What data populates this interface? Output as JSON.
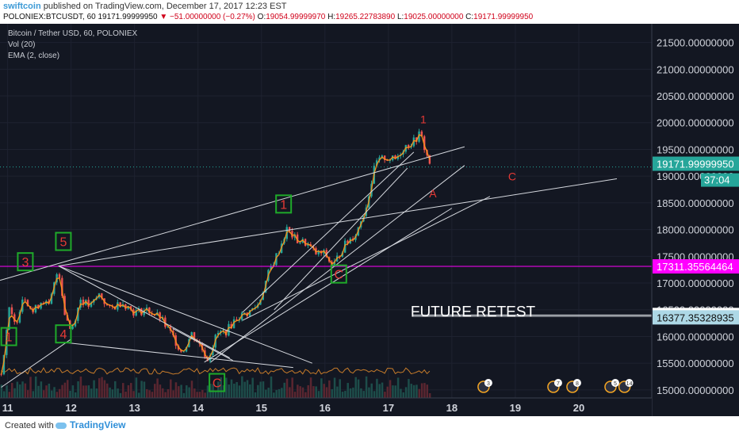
{
  "header": {
    "author": "swiftcoin",
    "published": "published on TradingView.com, December 17, 2017 12:23 EST",
    "symbol": "POLONIEX:BTCUSDT, 60",
    "last": "19171.99999950",
    "change": "▼ −51.00000000 (−0.27%)",
    "ohlc": {
      "o_label": "O:",
      "o": "19054.99999970",
      "h_label": "H:",
      "h": "19265.22783890",
      "l_label": "L:",
      "l": "19025.00000000",
      "c_label": "C:",
      "c": "19171.99999950"
    }
  },
  "legend": {
    "title": "Bitcoin / Tether USD, 60, POLONIEX",
    "vol": "Vol (20)",
    "ema": "EMA (2, close)"
  },
  "footer": {
    "created": "Created with",
    "brand": "TradingView"
  },
  "colors": {
    "background": "#131722",
    "up": "#26a69a",
    "down": "#ef5350",
    "ema": "#f7931a",
    "magenta": "#ff00ff",
    "annotation": "#e53935",
    "box": "#1faa2a"
  },
  "chart_data": {
    "type": "candlestick",
    "title": "Bitcoin / Tether USD, 60, POLONIEX",
    "x_ticks": [
      "11",
      "12",
      "13",
      "14",
      "15",
      "16",
      "17",
      "18",
      "19",
      "20"
    ],
    "y_ticks": [
      "15000.00000000",
      "15500.00000000",
      "16000.00000000",
      "16500.00000000",
      "17000.00000000",
      "17500.00000000",
      "18000.00000000",
      "18500.00000000",
      "19000.00000000",
      "19500.00000000",
      "20000.00000000",
      "20500.00000000",
      "21000.00000000",
      "21500.00000000"
    ],
    "ylim": [
      14850,
      21850
    ],
    "xlim": [
      10.88,
      21.15
    ],
    "price_path": [
      [
        10.9,
        15300
      ],
      [
        11.02,
        16500
      ],
      [
        11.12,
        16200
      ],
      [
        11.25,
        16800
      ],
      [
        11.4,
        16450
      ],
      [
        11.55,
        16700
      ],
      [
        11.65,
        16550
      ],
      [
        11.8,
        17300
      ],
      [
        11.9,
        16450
      ],
      [
        12.0,
        16100
      ],
      [
        12.15,
        16700
      ],
      [
        12.3,
        16550
      ],
      [
        12.45,
        16800
      ],
      [
        12.6,
        16500
      ],
      [
        12.8,
        16650
      ],
      [
        13.0,
        16450
      ],
      [
        13.2,
        16500
      ],
      [
        13.4,
        16350
      ],
      [
        13.6,
        16000
      ],
      [
        13.75,
        15700
      ],
      [
        13.9,
        16050
      ],
      [
        14.0,
        15900
      ],
      [
        14.15,
        15580
      ],
      [
        14.3,
        16050
      ],
      [
        14.45,
        16100
      ],
      [
        14.6,
        16350
      ],
      [
        14.8,
        16450
      ],
      [
        14.95,
        16600
      ],
      [
        15.1,
        17150
      ],
      [
        15.25,
        17550
      ],
      [
        15.4,
        18000
      ],
      [
        15.55,
        17800
      ],
      [
        15.7,
        17750
      ],
      [
        15.85,
        17550
      ],
      [
        16.0,
        17550
      ],
      [
        16.12,
        17300
      ],
      [
        16.3,
        17700
      ],
      [
        16.5,
        17950
      ],
      [
        16.65,
        18450
      ],
      [
        16.8,
        19250
      ],
      [
        16.95,
        19350
      ],
      [
        17.1,
        19300
      ],
      [
        17.25,
        19550
      ],
      [
        17.4,
        19650
      ],
      [
        17.5,
        19800
      ],
      [
        17.6,
        19400
      ],
      [
        17.68,
        19171
      ]
    ],
    "last_price": "19171.99999950",
    "countdown": "37:04",
    "levels": [
      {
        "value": 17311.35564464,
        "label": "17311.35564464"
      },
      {
        "value": 16402.35796695,
        "label": "16402.35796695"
      },
      {
        "value": 16377.35328935,
        "label": "16377.35328935"
      }
    ],
    "trendlines": [
      [
        [
          10.88,
          17050
        ],
        [
          18.2,
          19550
        ]
      ],
      [
        [
          11.8,
          17320
        ],
        [
          20.6,
          18950
        ]
      ],
      [
        [
          14.7,
          16300
        ],
        [
          18.6,
          18620
        ]
      ],
      [
        [
          14.2,
          15520
        ],
        [
          18.2,
          19200
        ]
      ],
      [
        [
          14.7,
          16450
        ],
        [
          17.4,
          19450
        ]
      ],
      [
        [
          15.2,
          16500
        ],
        [
          17.3,
          19150
        ]
      ],
      [
        [
          14.1,
          15520
        ],
        [
          18.0,
          18400
        ]
      ],
      [
        [
          11.8,
          17320
        ],
        [
          14.5,
          15600
        ]
      ],
      [
        [
          11.8,
          17320
        ],
        [
          15.8,
          15500
        ]
      ],
      [
        [
          11.95,
          15880
        ],
        [
          15.5,
          15420
        ]
      ],
      [
        [
          13.6,
          16150
        ],
        [
          14.55,
          15550
        ]
      ],
      [
        [
          10.9,
          15050
        ],
        [
          12.0,
          15950
        ]
      ]
    ],
    "labels": [
      {
        "text": "1",
        "x": 10.9,
        "y": 15850,
        "boxed": true
      },
      {
        "text": "3",
        "x": 11.16,
        "y": 17250,
        "boxed": true
      },
      {
        "text": "5",
        "x": 11.76,
        "y": 17630,
        "boxed": true
      },
      {
        "text": "4",
        "x": 11.76,
        "y": 15900,
        "boxed": true
      },
      {
        "text": "C",
        "x": 14.18,
        "y": 14990,
        "boxed": true
      },
      {
        "text": "1",
        "x": 15.23,
        "y": 18330,
        "boxed": true
      },
      {
        "text": "C",
        "x": 16.1,
        "y": 17020,
        "boxed": true
      },
      {
        "text": "1",
        "x": 17.55,
        "y": 19990,
        "boxed": false
      },
      {
        "text": "A",
        "x": 17.7,
        "y": 18600,
        "boxed": false
      },
      {
        "text": "C",
        "x": 18.95,
        "y": 18920,
        "boxed": false
      }
    ],
    "annotation": {
      "text": "FUTURE RETEST",
      "x": 17.35,
      "y": 16370
    },
    "volume_note": "Vol (20)",
    "event_badges": [
      {
        "text": "3",
        "x": 18.5
      },
      {
        "text": "7",
        "x": 19.6
      },
      {
        "text": "8",
        "x": 19.9
      },
      {
        "text": "5",
        "x": 20.5
      },
      {
        "text": "14",
        "x": 20.72
      }
    ]
  }
}
